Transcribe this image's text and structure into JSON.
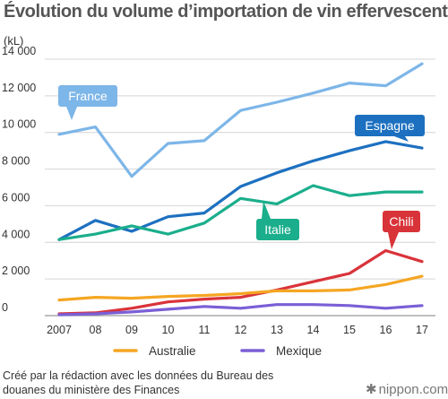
{
  "title": "Évolution du volume d’importation de vin effervescent",
  "unit": "(kL)",
  "source_line1": "Créé par la rédaction avec les données du Bureau des",
  "source_line2": "douanes du ministère des Finances",
  "brand": "nippon.com",
  "chart_data": {
    "type": "line",
    "x": [
      "2007",
      "08",
      "09",
      "10",
      "11",
      "12",
      "13",
      "14",
      "15",
      "16",
      "17"
    ],
    "y_tick_labels": [
      "0",
      "2 000",
      "4 000",
      "6 000",
      "8 000",
      "10 000",
      "12 000",
      "14 000"
    ],
    "ylim": [
      0,
      14000
    ],
    "ylabel": "(kL)",
    "grid": true,
    "series": [
      {
        "name": "France",
        "color": "#7db6e8",
        "label_style": "callout",
        "values": [
          9900,
          10300,
          7600,
          9400,
          9550,
          11200,
          11650,
          12150,
          12700,
          12550,
          13750
        ]
      },
      {
        "name": "Espagne",
        "color": "#1d70c0",
        "label_style": "callout",
        "values": [
          4150,
          5200,
          4600,
          5400,
          5600,
          7050,
          7800,
          8450,
          9000,
          9500,
          9150
        ]
      },
      {
        "name": "Italie",
        "color": "#1bae8c",
        "label_style": "callout",
        "values": [
          4150,
          4450,
          4900,
          4450,
          5050,
          6400,
          6100,
          7100,
          6550,
          6750,
          6750
        ]
      },
      {
        "name": "Chili",
        "color": "#d9333a",
        "label_style": "callout",
        "values": [
          100,
          150,
          400,
          750,
          900,
          1000,
          1400,
          1850,
          2300,
          3550,
          2950
        ]
      },
      {
        "name": "Australie",
        "color": "#f5a623",
        "label_style": "legend",
        "values": [
          850,
          1000,
          950,
          1050,
          1100,
          1200,
          1350,
          1350,
          1400,
          1700,
          2150
        ]
      },
      {
        "name": "Mexique",
        "color": "#7a5fd6",
        "label_style": "legend",
        "values": [
          50,
          100,
          200,
          350,
          500,
          400,
          600,
          600,
          550,
          400,
          550
        ]
      }
    ]
  }
}
